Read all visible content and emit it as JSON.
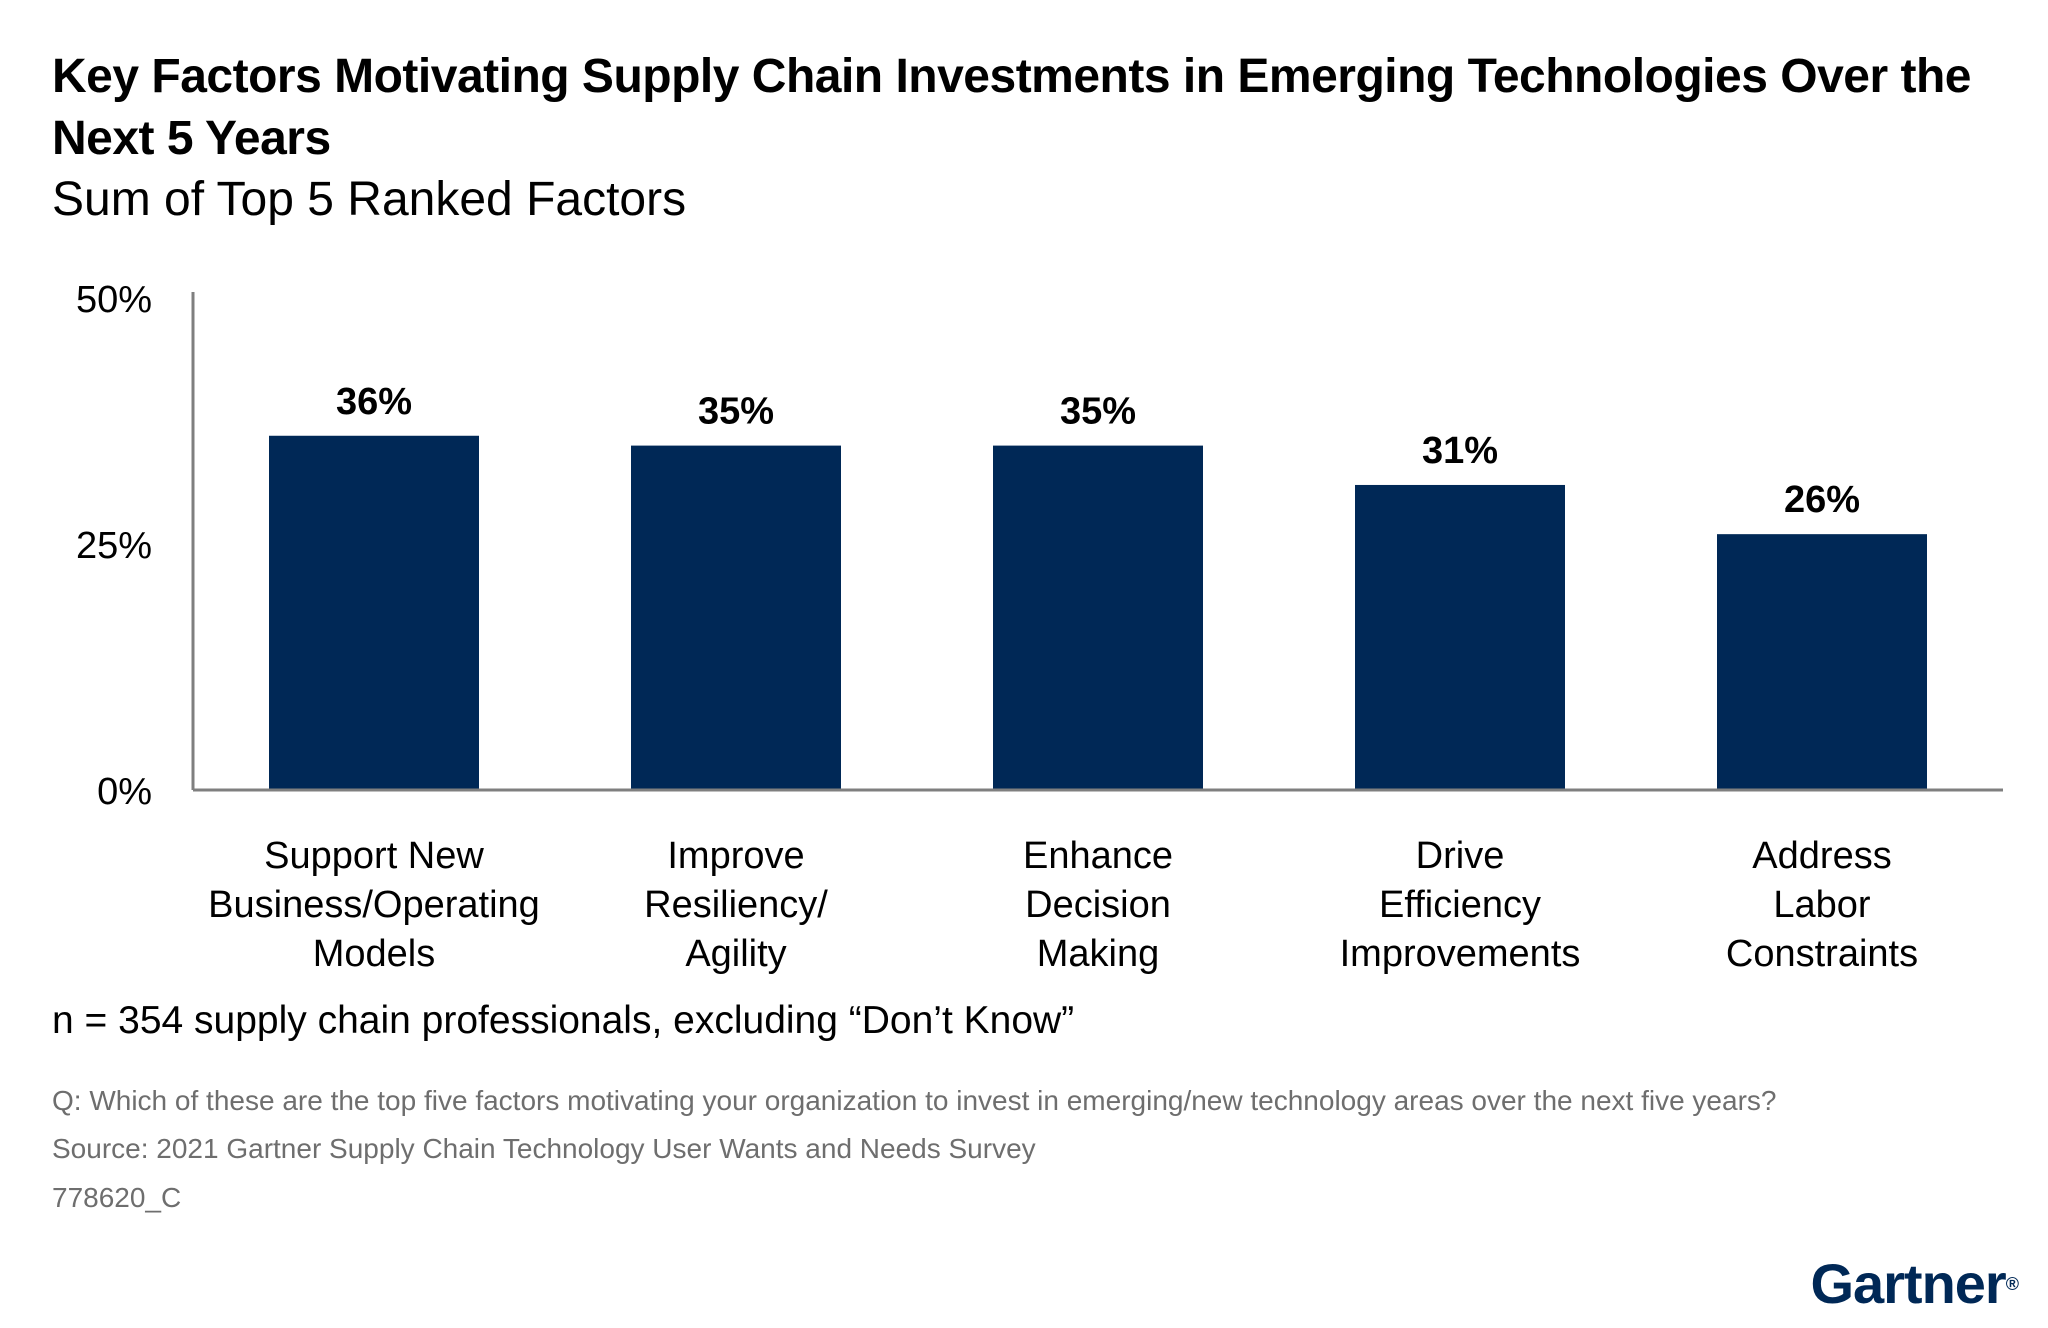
{
  "header": {
    "title": "Key Factors Motivating Supply Chain Investments in Emerging Technologies Over the Next 5 Years",
    "subtitle": "Sum of Top 5 Ranked Factors"
  },
  "chart_data": {
    "type": "bar",
    "title": "Key Factors Motivating Supply Chain Investments in Emerging Technologies Over the Next 5 Years",
    "subtitle": "Sum of Top 5 Ranked Factors",
    "categories": [
      [
        "Support New",
        "Business/Operating",
        "Models"
      ],
      [
        "Improve",
        "Resiliency/",
        "Agility"
      ],
      [
        "Enhance",
        "Decision",
        "Making"
      ],
      [
        "Drive",
        "Efficiency",
        "Improvements"
      ],
      [
        "Address",
        "Labor",
        "Constraints"
      ]
    ],
    "values": [
      36,
      35,
      35,
      31,
      26
    ],
    "value_labels": [
      "36%",
      "35%",
      "35%",
      "31%",
      "26%"
    ],
    "yticks": [
      0,
      25,
      50
    ],
    "ytick_labels": [
      "0%",
      "25%",
      "50%"
    ],
    "ylim": [
      0,
      50
    ],
    "xlabel": "",
    "ylabel": "",
    "grid": false,
    "bar_color": "#002856",
    "axis_color": "#7f7f7f"
  },
  "notes": {
    "sample": "n = 354 supply chain professionals, excluding “Don’t Know”",
    "question": "Q: Which of these are the top five factors motivating your organization to invest in emerging/new technology areas over the next five years?",
    "source": "Source: 2021 Gartner Supply Chain Technology User Wants and Needs Survey",
    "id": "778620_C"
  },
  "brand": {
    "logo_text": "Gartner",
    "logo_mark": "®",
    "color": "#002856"
  }
}
